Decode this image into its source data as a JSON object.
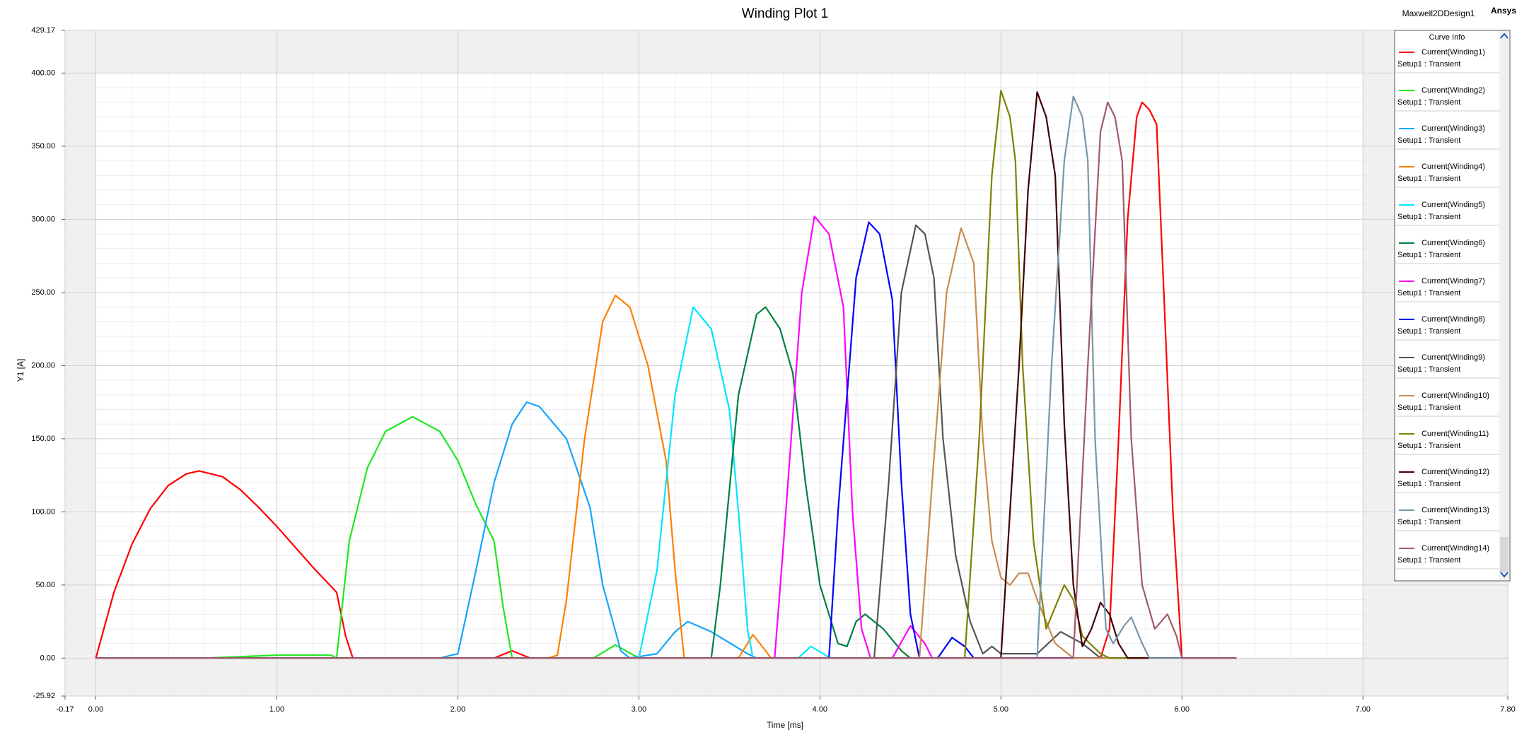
{
  "chart_data": {
    "type": "line",
    "title": "Winding Plot 1",
    "design": "Maxwell2DDesign1",
    "brand": "Ansys",
    "x_label": "Time [ms]",
    "y_label": "Y1 [A]",
    "legend": {
      "title": "Curve Info",
      "position": "right"
    },
    "grid": true,
    "xlim": [
      -0.17,
      7.8
    ],
    "ylim": [
      -25.92,
      429.17
    ],
    "xticks": [
      {
        "value": -0.17,
        "label": "-0.17"
      },
      {
        "value": 0,
        "label": "0.00"
      },
      {
        "value": 1,
        "label": "1.00"
      },
      {
        "value": 2,
        "label": "2.00"
      },
      {
        "value": 3,
        "label": "3.00"
      },
      {
        "value": 4,
        "label": "4.00"
      },
      {
        "value": 5,
        "label": "5.00"
      },
      {
        "value": 6,
        "label": "6.00"
      },
      {
        "value": 7,
        "label": "7.00"
      },
      {
        "value": 7.8,
        "label": "7.80"
      }
    ],
    "yticks": [
      {
        "value": -25.92,
        "label": "-25.92"
      },
      {
        "value": 0,
        "label": "0.00"
      },
      {
        "value": 50,
        "label": "50.00"
      },
      {
        "value": 100,
        "label": "100.00"
      },
      {
        "value": 150,
        "label": "150.00"
      },
      {
        "value": 200,
        "label": "200.00"
      },
      {
        "value": 250,
        "label": "250.00"
      },
      {
        "value": 300,
        "label": "300.00"
      },
      {
        "value": 350,
        "label": "350.00"
      },
      {
        "value": 400,
        "label": "400.00"
      },
      {
        "value": 429.17,
        "label": "429.17"
      }
    ],
    "series": [
      {
        "name": "Current(Winding1)",
        "setup": "Setup1 : Transient",
        "color": "#ff0000",
        "x": [
          0,
          0.1,
          0.2,
          0.3,
          0.4,
          0.5,
          0.57,
          0.7,
          0.8,
          0.9,
          1.0,
          1.1,
          1.2,
          1.33,
          1.38,
          1.42,
          2.2,
          2.3,
          2.4,
          5.55,
          5.6,
          5.65,
          5.7,
          5.75,
          5.78,
          5.82,
          5.86,
          5.9,
          5.95,
          6.0,
          6.3
        ],
        "values": [
          0,
          45,
          78,
          102,
          118,
          126,
          128,
          124,
          115,
          103,
          90,
          76,
          62,
          45,
          15,
          0,
          0,
          5,
          0,
          0,
          20,
          150,
          300,
          370,
          380,
          375,
          365,
          250,
          100,
          0,
          0
        ]
      },
      {
        "name": "Current(Winding2)",
        "setup": "Setup1 : Transient",
        "color": "#1ee81e",
        "x": [
          0,
          0.6,
          1.0,
          1.3,
          1.33,
          1.4,
          1.5,
          1.6,
          1.75,
          1.9,
          2.0,
          2.1,
          2.2,
          2.25,
          2.3,
          2.75,
          2.87,
          3.0,
          6.3
        ],
        "values": [
          0,
          0,
          2,
          2,
          0,
          80,
          130,
          155,
          165,
          155,
          135,
          105,
          80,
          35,
          0,
          0,
          9,
          0,
          0
        ]
      },
      {
        "name": "Current(Winding3)",
        "setup": "Setup1 : Transient",
        "color": "#14a5ff",
        "x": [
          0,
          1.9,
          2.0,
          2.1,
          2.2,
          2.3,
          2.38,
          2.45,
          2.6,
          2.73,
          2.8,
          2.9,
          2.95,
          3.1,
          3.2,
          3.27,
          3.4,
          3.6,
          3.65,
          6.3
        ],
        "values": [
          0,
          0,
          3,
          60,
          120,
          160,
          175,
          172,
          150,
          103,
          50,
          5,
          0,
          3,
          18,
          25,
          18,
          3,
          0,
          0
        ]
      },
      {
        "name": "Current(Winding4)",
        "setup": "Setup1 : Transient",
        "color": "#ff8000",
        "x": [
          0,
          2.5,
          2.55,
          2.6,
          2.7,
          2.8,
          2.87,
          2.95,
          3.05,
          3.15,
          3.2,
          3.25,
          3.55,
          3.63,
          3.7,
          3.73,
          6.3
        ],
        "values": [
          0,
          0,
          2,
          40,
          150,
          230,
          248,
          240,
          200,
          135,
          60,
          0,
          0,
          16,
          5,
          0,
          0
        ]
      },
      {
        "name": "Current(Winding5)",
        "setup": "Setup1 : Transient",
        "color": "#00e5ff",
        "x": [
          0,
          3.0,
          3.1,
          3.2,
          3.3,
          3.4,
          3.5,
          3.55,
          3.6,
          3.63,
          3.88,
          3.95,
          4.02,
          4.05,
          6.3
        ],
        "values": [
          0,
          0,
          60,
          180,
          240,
          225,
          170,
          100,
          20,
          0,
          0,
          8,
          3,
          0,
          0
        ]
      },
      {
        "name": "Current(Winding6)",
        "setup": "Setup1 : Transient",
        "color": "#008040",
        "x": [
          0,
          3.4,
          3.45,
          3.55,
          3.65,
          3.7,
          3.78,
          3.85,
          3.92,
          4.0,
          4.1,
          4.15,
          4.2,
          4.25,
          4.35,
          4.45,
          4.5,
          6.3
        ],
        "values": [
          0,
          0,
          50,
          180,
          235,
          240,
          225,
          195,
          120,
          50,
          10,
          8,
          25,
          30,
          20,
          5,
          0,
          0
        ]
      },
      {
        "name": "Current(Winding7)",
        "setup": "Setup1 : Transient",
        "color": "#ff00ff",
        "x": [
          0,
          3.75,
          3.8,
          3.9,
          3.97,
          4.05,
          4.13,
          4.18,
          4.23,
          4.28,
          4.4,
          4.5,
          4.58,
          4.62,
          6.3
        ],
        "values": [
          0,
          0,
          80,
          250,
          302,
          290,
          240,
          100,
          20,
          0,
          0,
          22,
          10,
          0,
          0
        ]
      },
      {
        "name": "Current(Winding8)",
        "setup": "Setup1 : Transient",
        "color": "#0000ff",
        "x": [
          0,
          4.05,
          4.1,
          4.2,
          4.27,
          4.33,
          4.4,
          4.45,
          4.5,
          4.55,
          4.65,
          4.73,
          4.8,
          4.85,
          6.3
        ],
        "values": [
          0,
          0,
          100,
          260,
          298,
          290,
          245,
          120,
          30,
          0,
          0,
          14,
          8,
          0,
          0
        ]
      },
      {
        "name": "Current(Winding9)",
        "setup": "Setup1 : Transient",
        "color": "#555555",
        "x": [
          0,
          4.3,
          4.38,
          4.45,
          4.53,
          4.58,
          4.63,
          4.68,
          4.75,
          4.83,
          4.9,
          4.95,
          5.0,
          5.2,
          5.33,
          5.45,
          5.55,
          6.3
        ],
        "values": [
          0,
          0,
          120,
          250,
          296,
          290,
          260,
          150,
          70,
          25,
          3,
          8,
          3,
          3,
          18,
          10,
          0,
          0
        ]
      },
      {
        "name": "Current(Winding10)",
        "setup": "Setup1 : Transient",
        "color": "#c88c50",
        "x": [
          0,
          4.55,
          4.62,
          4.7,
          4.78,
          4.85,
          4.9,
          4.95,
          5.0,
          5.05,
          5.1,
          5.15,
          5.2,
          5.3,
          5.4,
          6.3
        ],
        "values": [
          0,
          0,
          120,
          250,
          294,
          270,
          150,
          80,
          55,
          50,
          58,
          58,
          40,
          10,
          0,
          0
        ]
      },
      {
        "name": "Current(Winding11)",
        "setup": "Setup1 : Transient",
        "color": "#808000",
        "x": [
          0,
          4.8,
          4.88,
          4.95,
          5.0,
          5.05,
          5.08,
          5.12,
          5.18,
          5.25,
          5.3,
          5.35,
          5.4,
          5.45,
          5.55,
          5.6,
          6.3
        ],
        "values": [
          0,
          0,
          150,
          330,
          388,
          370,
          340,
          200,
          80,
          20,
          35,
          50,
          40,
          15,
          3,
          0,
          0
        ]
      },
      {
        "name": "Current(Winding12)",
        "setup": "Setup1 : Transient",
        "color": "#400000",
        "x": [
          0,
          5.0,
          5.1,
          5.15,
          5.2,
          5.25,
          5.3,
          5.35,
          5.4,
          5.45,
          5.5,
          5.55,
          5.6,
          5.65,
          5.7,
          6.3
        ],
        "values": [
          0,
          0,
          200,
          320,
          387,
          370,
          330,
          160,
          50,
          8,
          20,
          38,
          30,
          10,
          0,
          0
        ]
      },
      {
        "name": "Current(Winding13)",
        "setup": "Setup1 : Transient",
        "color": "#7896a8",
        "x": [
          0,
          5.2,
          5.28,
          5.35,
          5.4,
          5.45,
          5.48,
          5.52,
          5.58,
          5.62,
          5.68,
          5.72,
          5.78,
          5.82,
          6.3
        ],
        "values": [
          0,
          0,
          200,
          340,
          384,
          370,
          340,
          150,
          20,
          10,
          22,
          28,
          10,
          0,
          0
        ]
      },
      {
        "name": "Current(Winding14)",
        "setup": "Setup1 : Transient",
        "color": "#a05a6e",
        "x": [
          0,
          5.4,
          5.48,
          5.55,
          5.59,
          5.63,
          5.67,
          5.72,
          5.78,
          5.85,
          5.92,
          5.97,
          6.0,
          6.3
        ],
        "values": [
          0,
          0,
          200,
          360,
          380,
          370,
          340,
          150,
          50,
          20,
          30,
          15,
          0,
          0
        ]
      }
    ]
  }
}
